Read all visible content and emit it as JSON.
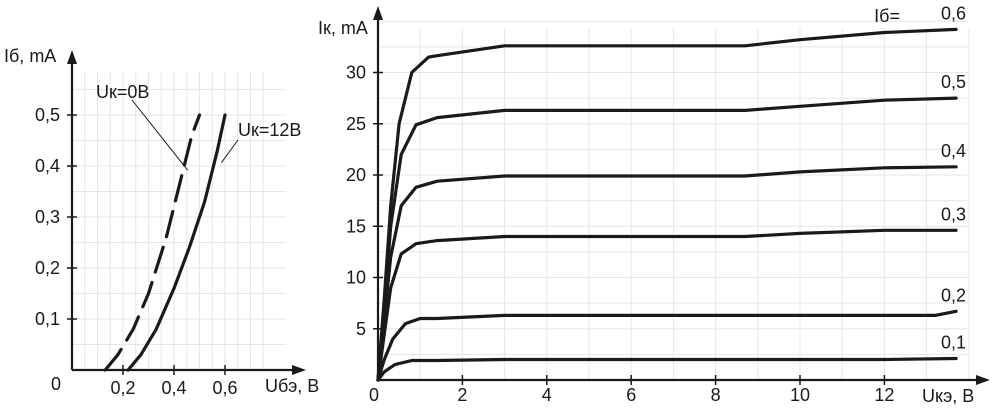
{
  "chart_data": [
    {
      "type": "line",
      "title": "",
      "xlabel": "Uбэ, В",
      "ylabel": "Iб, mA",
      "origin_label": "0",
      "xlim": [
        0,
        0.8
      ],
      "ylim": [
        0,
        0.57
      ],
      "x_ticks": [
        0.2,
        0.4,
        0.6
      ],
      "x_tick_labels": [
        "0,2",
        "0,4",
        "0,6"
      ],
      "y_ticks": [
        0.1,
        0.2,
        0.3,
        0.4,
        0.5
      ],
      "y_tick_labels": [
        "0,1",
        "0,2",
        "0,3",
        "0,4",
        "0,5"
      ],
      "grid": true,
      "series": [
        {
          "name": "Uк=0В",
          "style": "dashed",
          "points": [
            [
              0.13,
              0
            ],
            [
              0.18,
              0.03
            ],
            [
              0.24,
              0.08
            ],
            [
              0.3,
              0.15
            ],
            [
              0.37,
              0.26
            ],
            [
              0.43,
              0.38
            ],
            [
              0.47,
              0.46
            ],
            [
              0.5,
              0.5
            ]
          ]
        },
        {
          "name": "Uк=12В",
          "style": "solid",
          "points": [
            [
              0.22,
              0
            ],
            [
              0.27,
              0.03
            ],
            [
              0.33,
              0.08
            ],
            [
              0.4,
              0.16
            ],
            [
              0.46,
              0.24
            ],
            [
              0.52,
              0.33
            ],
            [
              0.57,
              0.43
            ],
            [
              0.6,
              0.5
            ]
          ]
        }
      ]
    },
    {
      "type": "line",
      "title": "",
      "xlabel": "Uкэ, В",
      "ylabel": "Iк, mA",
      "origin_label": "0",
      "legend_prefix": "Iб=",
      "xlim": [
        0,
        14.5
      ],
      "ylim": [
        0,
        35
      ],
      "x_ticks": [
        2,
        4,
        6,
        8,
        10,
        12
      ],
      "x_tick_labels": [
        "2",
        "4",
        "6",
        "8",
        "10",
        "12"
      ],
      "y_ticks": [
        5,
        10,
        15,
        20,
        25,
        30
      ],
      "y_tick_labels": [
        "5",
        "10",
        "15",
        "20",
        "25",
        "30"
      ],
      "grid": true,
      "series": [
        {
          "name": "0,6",
          "points": [
            [
              0,
              0
            ],
            [
              0.15,
              8
            ],
            [
              0.3,
              17
            ],
            [
              0.5,
              25
            ],
            [
              0.8,
              30
            ],
            [
              1.2,
              31.5
            ],
            [
              1.5,
              31.7
            ],
            [
              3,
              32.6
            ],
            [
              8.7,
              32.6
            ],
            [
              10,
              33.2
            ],
            [
              12,
              33.9
            ],
            [
              13.7,
              34.2
            ]
          ]
        },
        {
          "name": "0,5",
          "points": [
            [
              0,
              0
            ],
            [
              0.15,
              7
            ],
            [
              0.3,
              15
            ],
            [
              0.55,
              22
            ],
            [
              0.9,
              24.9
            ],
            [
              1.4,
              25.6
            ],
            [
              3,
              26.3
            ],
            [
              8.7,
              26.3
            ],
            [
              10,
              26.7
            ],
            [
              12,
              27.3
            ],
            [
              13.7,
              27.5
            ]
          ]
        },
        {
          "name": "0,4",
          "points": [
            [
              0,
              0
            ],
            [
              0.15,
              6
            ],
            [
              0.3,
              12
            ],
            [
              0.55,
              17
            ],
            [
              0.9,
              18.8
            ],
            [
              1.4,
              19.4
            ],
            [
              3,
              19.9
            ],
            [
              8.7,
              19.9
            ],
            [
              10,
              20.3
            ],
            [
              12,
              20.7
            ],
            [
              13.7,
              20.8
            ]
          ]
        },
        {
          "name": "0,3",
          "points": [
            [
              0,
              0
            ],
            [
              0.15,
              4.5
            ],
            [
              0.3,
              9
            ],
            [
              0.55,
              12.3
            ],
            [
              0.9,
              13.3
            ],
            [
              1.4,
              13.6
            ],
            [
              3,
              14
            ],
            [
              8.7,
              14
            ],
            [
              10,
              14.3
            ],
            [
              12,
              14.6
            ],
            [
              13.7,
              14.6
            ]
          ]
        },
        {
          "name": "0,2",
          "points": [
            [
              0,
              0
            ],
            [
              0.15,
              2
            ],
            [
              0.35,
              4
            ],
            [
              0.65,
              5.5
            ],
            [
              1.0,
              6
            ],
            [
              1.4,
              6
            ],
            [
              3,
              6.3
            ],
            [
              8.7,
              6.3
            ],
            [
              10,
              6.3
            ],
            [
              12,
              6.3
            ],
            [
              13.2,
              6.3
            ],
            [
              13.7,
              6.7
            ]
          ]
        },
        {
          "name": "0,1",
          "points": [
            [
              0,
              0
            ],
            [
              0.15,
              0.8
            ],
            [
              0.4,
              1.5
            ],
            [
              0.8,
              1.9
            ],
            [
              1.4,
              1.9
            ],
            [
              3,
              2
            ],
            [
              12,
              2
            ],
            [
              13.7,
              2.1
            ]
          ]
        }
      ]
    }
  ]
}
